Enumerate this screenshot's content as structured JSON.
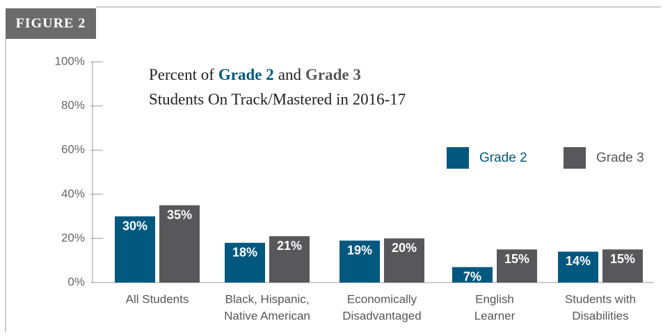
{
  "figure_label": "FIGURE 2",
  "chart_data": {
    "type": "bar",
    "title": {
      "before": "Percent of",
      "between": "and",
      "line2": "Students On Track/Mastered in 2016-17"
    },
    "categories": [
      [
        "All Students"
      ],
      [
        "Black, Hispanic,",
        "Native American"
      ],
      [
        "Economically",
        "Disadvantaged"
      ],
      [
        "English",
        "Learner"
      ],
      [
        "Students with",
        "Disabilities"
      ]
    ],
    "series": [
      {
        "name": "Grade 2",
        "color": "#02587f",
        "values": [
          30,
          18,
          19,
          7,
          14
        ],
        "value_labels": [
          "30%",
          "18%",
          "19%",
          "7%",
          "14%"
        ]
      },
      {
        "name": "Grade 3",
        "color": "#58585a",
        "values": [
          35,
          21,
          20,
          15,
          15
        ],
        "value_labels": [
          "35%",
          "21%",
          "20%",
          "15%",
          "15%"
        ]
      }
    ],
    "ylim": [
      0,
      100
    ],
    "yticks": [
      {
        "value": 0,
        "label": "0%"
      },
      {
        "value": 20,
        "label": "20%"
      },
      {
        "value": 40,
        "label": "40%"
      },
      {
        "value": 60,
        "label": "60%"
      },
      {
        "value": 80,
        "label": "80%"
      },
      {
        "value": 100,
        "label": "100%"
      }
    ],
    "legend": "upper right"
  }
}
